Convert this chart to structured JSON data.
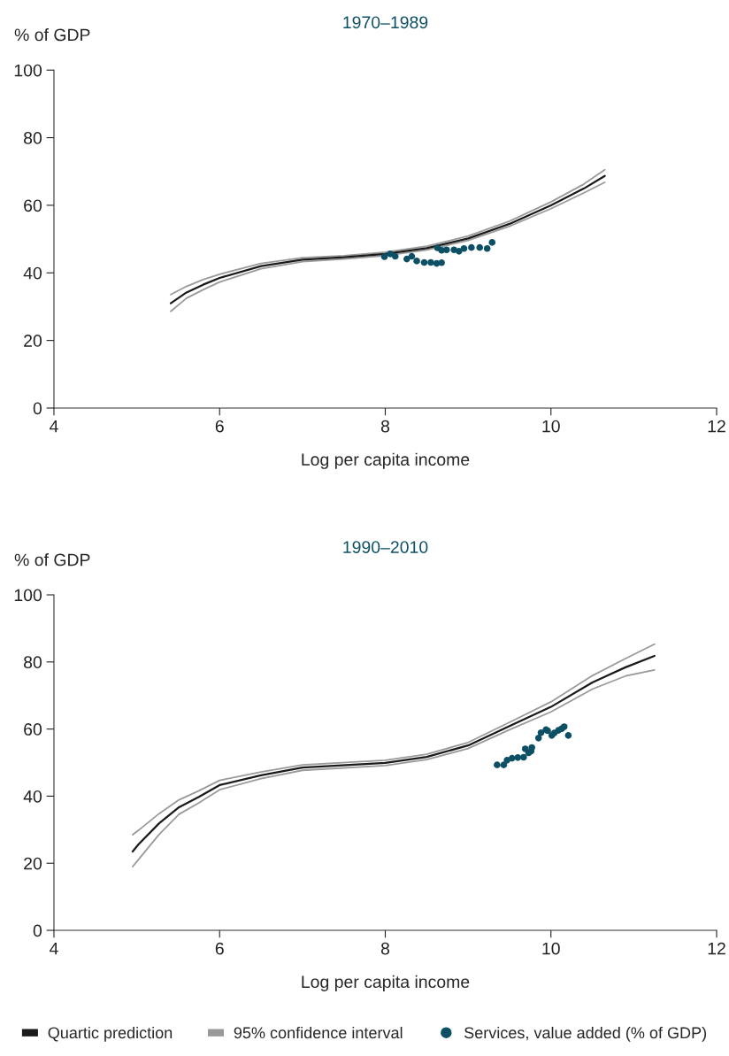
{
  "chart_data": [
    {
      "type": "scatter",
      "title": "1970–1989",
      "ylabel": "% of GDP",
      "xlabel": "Log per capita income",
      "xlim": [
        4,
        12
      ],
      "xticks": [
        4,
        6,
        8,
        10,
        12
      ],
      "ylim": [
        0,
        100
      ],
      "yticks": [
        0,
        20,
        40,
        60,
        80,
        100
      ],
      "grid": false,
      "legend": false,
      "series": [
        {
          "type": "line",
          "color": "#1a1a1a",
          "x": [
            5.41,
            5.6,
            5.8,
            6.0,
            6.5,
            7.0,
            7.5,
            8.0,
            8.5,
            9.0,
            9.5,
            10.0,
            10.4,
            10.65
          ],
          "values": [
            31.0,
            34.2,
            36.5,
            38.5,
            42.0,
            43.9,
            44.6,
            45.6,
            47.3,
            50.2,
            54.5,
            60.0,
            65.0,
            68.7
          ]
        },
        {
          "type": "line",
          "color": "#9a9a9a",
          "x": [
            5.41,
            5.6,
            5.8,
            6.0,
            6.5,
            7.0,
            7.5,
            8.0,
            8.5,
            9.0,
            9.5,
            10.0,
            10.4,
            10.65
          ],
          "values": [
            33.6,
            36.0,
            38.0,
            39.6,
            42.8,
            44.5,
            45.1,
            46.1,
            47.9,
            50.9,
            55.3,
            61.0,
            66.3,
            70.5
          ]
        },
        {
          "type": "line",
          "color": "#9a9a9a",
          "x": [
            5.41,
            5.6,
            5.8,
            6.0,
            6.5,
            7.0,
            7.5,
            8.0,
            8.5,
            9.0,
            9.5,
            10.0,
            10.4,
            10.65
          ],
          "values": [
            28.6,
            32.5,
            35.0,
            37.3,
            41.2,
            43.3,
            44.1,
            45.1,
            46.8,
            49.6,
            53.8,
            59.0,
            63.7,
            66.8
          ]
        },
        {
          "color": "#0d5066",
          "marker": "circle",
          "x": [
            7.99,
            8.06,
            8.12,
            8.26,
            8.32,
            8.38,
            8.47,
            8.55,
            8.62,
            8.68,
            8.63,
            8.68,
            8.74,
            8.83,
            8.89,
            8.95,
            9.04,
            9.14,
            9.23,
            9.29
          ],
          "values": [
            44.8,
            45.6,
            44.9,
            44.1,
            44.9,
            43.5,
            43.1,
            43.1,
            42.8,
            43.0,
            47.4,
            46.7,
            46.8,
            46.8,
            46.4,
            47.2,
            47.5,
            47.5,
            47.2,
            49.0
          ]
        }
      ]
    },
    {
      "type": "scatter",
      "title": "1990–2010",
      "ylabel": "% of GDP",
      "xlabel": "Log per capita income",
      "xlim": [
        4,
        12
      ],
      "xticks": [
        4,
        6,
        8,
        10,
        12
      ],
      "ylim": [
        0,
        100
      ],
      "yticks": [
        0,
        20,
        40,
        60,
        80,
        100
      ],
      "grid": false,
      "legend": "bottom",
      "series": [
        {
          "name": "Quartic prediction",
          "type": "line",
          "color": "#1a1a1a",
          "x": [
            4.95,
            5.02,
            5.27,
            5.51,
            5.75,
            6.0,
            6.5,
            7.0,
            8.0,
            8.5,
            9.0,
            9.5,
            10.0,
            10.5,
            10.9,
            11.25
          ],
          "values": [
            23.5,
            25.6,
            31.9,
            36.7,
            39.8,
            43.3,
            46.2,
            48.5,
            49.9,
            51.7,
            55.1,
            60.9,
            66.6,
            73.9,
            78.4,
            81.8
          ]
        },
        {
          "name": "95% confidence interval",
          "type": "line",
          "color": "#9a9a9a",
          "x": [
            4.95,
            5.02,
            5.27,
            5.51,
            5.75,
            6.0,
            6.5,
            7.0,
            8.0,
            8.5,
            9.0,
            9.5,
            10.0,
            10.5,
            10.9,
            11.25
          ],
          "values": [
            28.5,
            29.8,
            34.8,
            38.9,
            41.6,
            44.7,
            47.2,
            49.3,
            50.7,
            52.5,
            56.0,
            62.0,
            68.1,
            75.9,
            81.0,
            85.3
          ]
        },
        {
          "type": "line",
          "color": "#9a9a9a",
          "x": [
            4.95,
            5.02,
            5.27,
            5.51,
            5.75,
            6.0,
            6.5,
            7.0,
            8.0,
            8.5,
            9.0,
            9.5,
            10.0,
            10.5,
            10.9,
            11.25
          ],
          "values": [
            19.0,
            21.1,
            28.6,
            34.6,
            38.0,
            41.9,
            45.2,
            47.7,
            49.1,
            50.9,
            54.2,
            59.8,
            65.1,
            71.9,
            75.8,
            77.6
          ]
        },
        {
          "name": "Services, value added (% of GDP)",
          "color": "#0d5066",
          "marker": "circle",
          "x": [
            9.35,
            9.43,
            9.47,
            9.53,
            9.6,
            9.67,
            9.69,
            9.73,
            9.76,
            9.77,
            9.85,
            9.88,
            9.94,
            9.96,
            10.01,
            10.04,
            10.09,
            10.13,
            10.16,
            10.21
          ],
          "values": [
            49.3,
            49.3,
            50.7,
            51.3,
            51.5,
            51.6,
            54.1,
            52.9,
            53.4,
            54.5,
            57.3,
            58.9,
            59.8,
            59.5,
            58.1,
            58.8,
            59.6,
            60.1,
            60.7,
            58.1
          ]
        }
      ]
    }
  ]
}
